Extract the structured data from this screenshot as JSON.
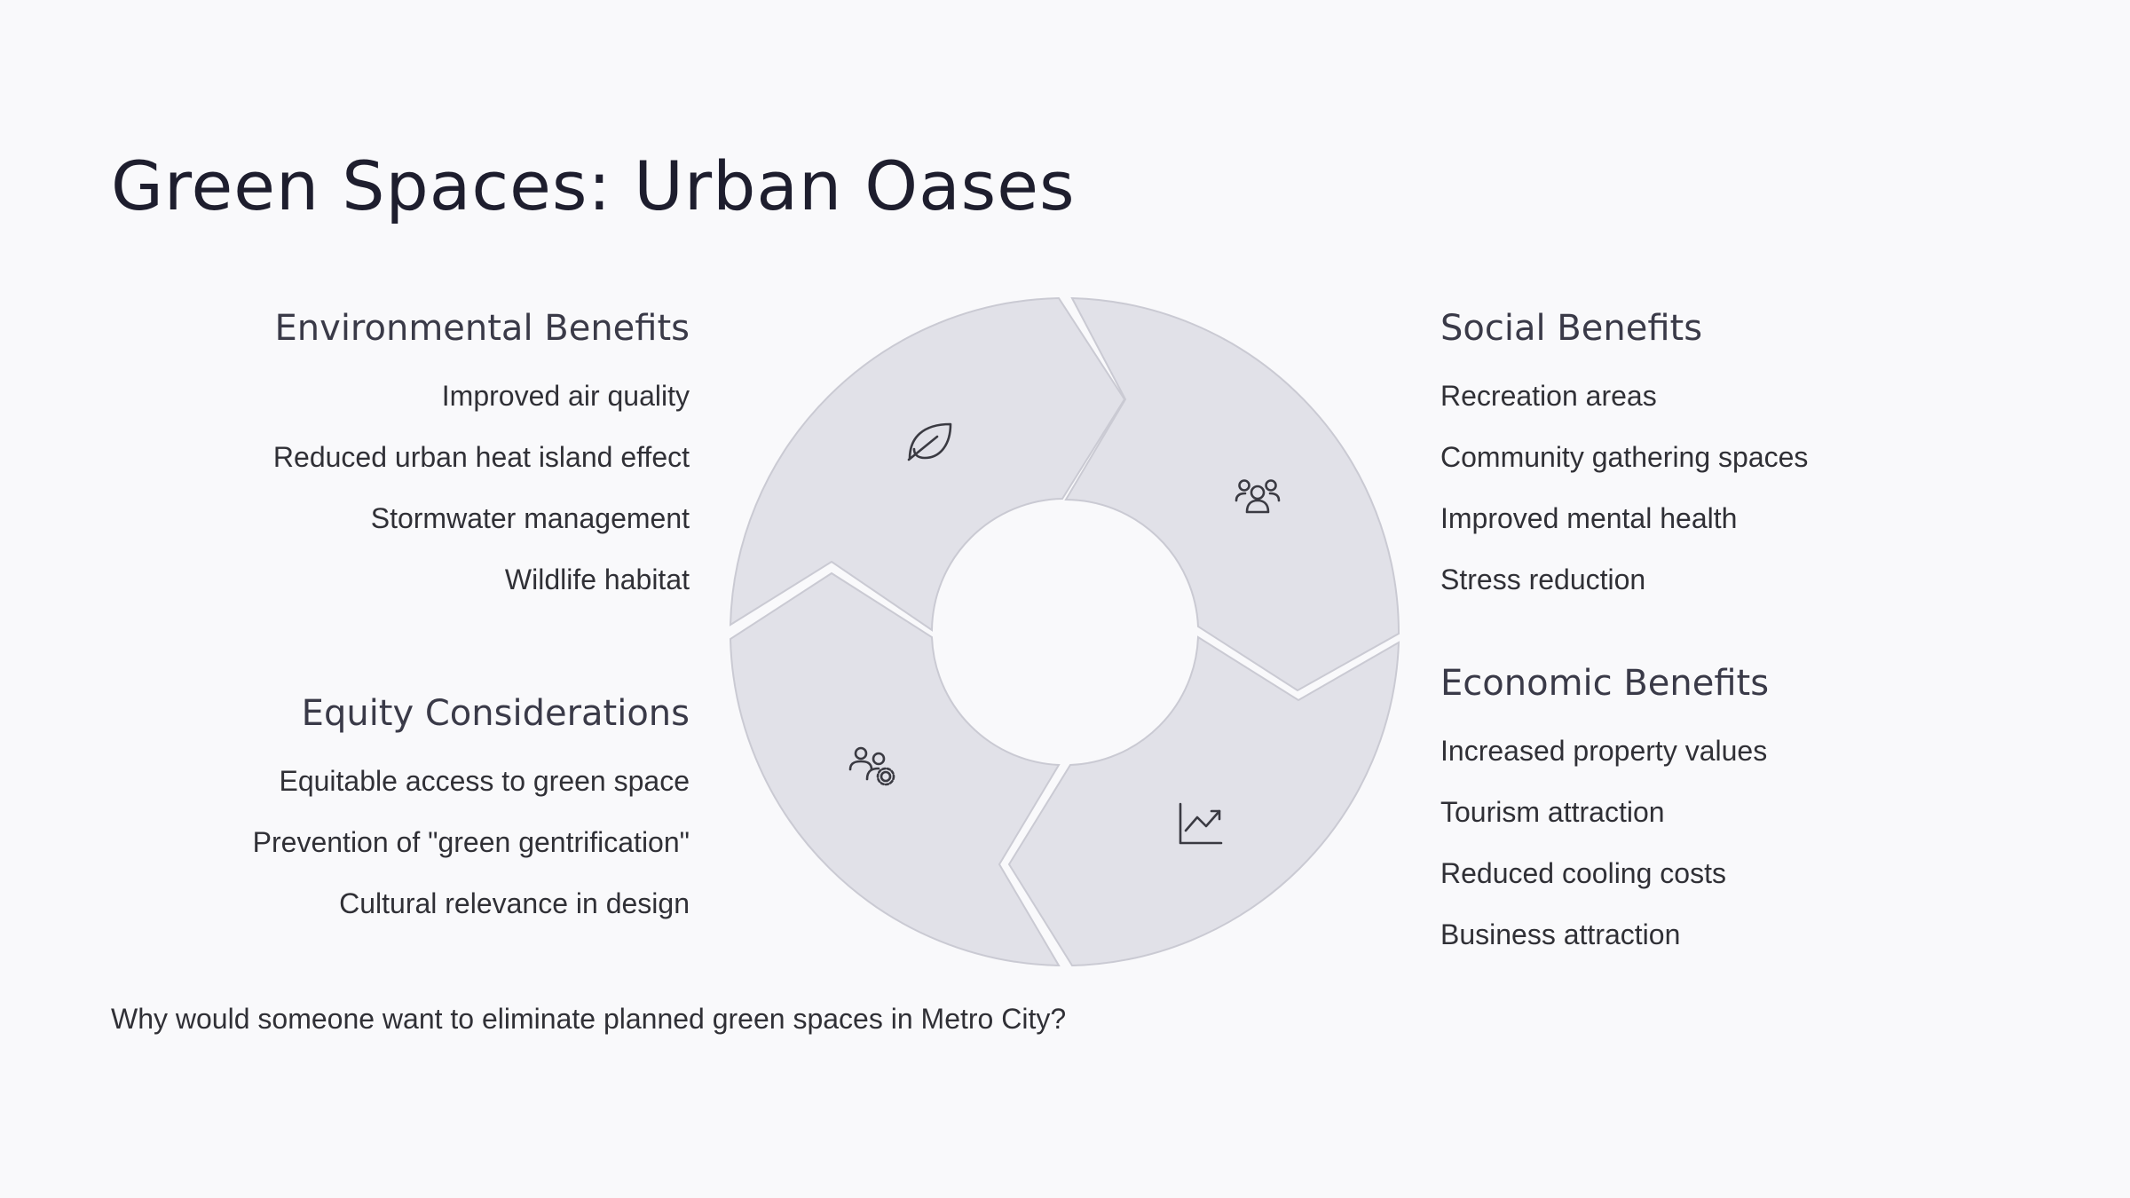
{
  "title": "Green Spaces: Urban Oases",
  "groups": {
    "environmental": {
      "heading": "Environmental Benefits",
      "icon": "leaf-icon",
      "items": [
        "Improved air quality",
        "Reduced urban heat island effect",
        "Stormwater management",
        "Wildlife habitat"
      ]
    },
    "social": {
      "heading": "Social Benefits",
      "icon": "people-icon",
      "items": [
        "Recreation areas",
        "Community gathering spaces",
        "Improved mental health",
        "Stress reduction"
      ]
    },
    "economic": {
      "heading": "Economic Benefits",
      "icon": "chart-trend-icon",
      "items": [
        "Increased property values",
        "Tourism attraction",
        "Reduced cooling costs",
        "Business attraction"
      ]
    },
    "equity": {
      "heading": "Equity Considerations",
      "icon": "people-settings-icon",
      "items": [
        "Equitable access to green space",
        "Prevention of \"green gentrification\"",
        "Cultural relevance in design"
      ]
    }
  },
  "question": "Why would someone want to eliminate planned green spaces in Metro City?",
  "colors": {
    "segment": "#e1e1e8",
    "background": "#f9f9fb",
    "title": "#1e1e2e"
  }
}
